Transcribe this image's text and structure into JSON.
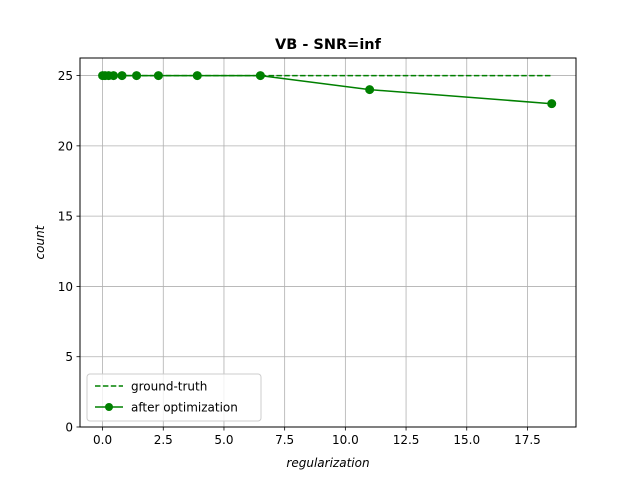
{
  "chart_data": {
    "type": "line",
    "title": "VB - SNR=inf",
    "xlabel": "regularization",
    "ylabel": "count",
    "xlim": [
      -0.93,
      19.5
    ],
    "ylim": [
      0,
      26.25
    ],
    "xticks": [
      0.0,
      2.5,
      5.0,
      7.5,
      10.0,
      12.5,
      15.0,
      17.5
    ],
    "xtick_labels": [
      "0.0",
      "2.5",
      "5.0",
      "7.5",
      "10.0",
      "12.5",
      "15.0",
      "17.5"
    ],
    "yticks": [
      0,
      5,
      10,
      15,
      20,
      25
    ],
    "ytick_labels": [
      "0",
      "5",
      "10",
      "15",
      "20",
      "25"
    ],
    "grid": true,
    "legend_position": "lower-left",
    "series": [
      {
        "name": "ground-truth",
        "style": "dashed",
        "marker": "none",
        "color": "#008000",
        "x": [
          0.0,
          0.1,
          0.25,
          0.45,
          0.8,
          1.4,
          2.3,
          3.9,
          6.5,
          11.0,
          18.5
        ],
        "y": [
          25,
          25,
          25,
          25,
          25,
          25,
          25,
          25,
          25,
          25,
          25
        ]
      },
      {
        "name": "after optimization",
        "style": "solid",
        "marker": "circle",
        "color": "#008000",
        "x": [
          0.0,
          0.1,
          0.25,
          0.45,
          0.8,
          1.4,
          2.3,
          3.9,
          6.5,
          11.0,
          18.5
        ],
        "y": [
          25,
          25,
          25,
          25,
          25,
          25,
          25,
          25,
          25,
          24,
          23
        ]
      }
    ]
  }
}
